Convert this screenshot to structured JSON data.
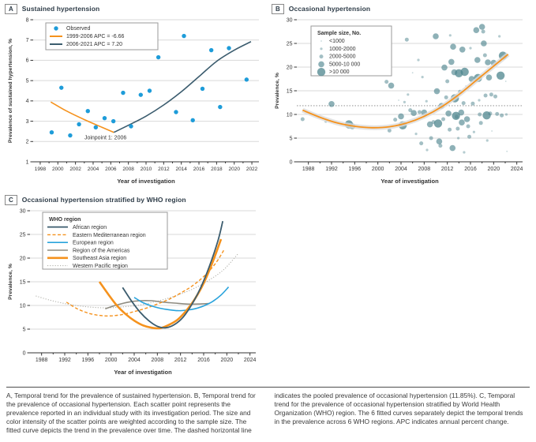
{
  "colors": {
    "observed_blue": "#1e9cd9",
    "trend_orange": "#f5921d",
    "trend_slate": "#3b5c6e",
    "bubble_teal": "#4e858e",
    "europe_blue": "#29a3dc",
    "americas_gray": "#8e8b80",
    "western_pacific_gray": "#b2b2ac",
    "grid": "#d9d9d9",
    "axis": "#333333",
    "pooled_line": "#808080",
    "ci_band": "#dcdcdc",
    "legend_border": "#9a9a9a",
    "header_text": "#2e3c48"
  },
  "panels": {
    "a": {
      "label": "A",
      "title": "Sustained hypertension"
    },
    "b": {
      "label": "B",
      "title": "Occasional hypertension"
    },
    "c": {
      "label": "C",
      "title": "Occasional hypertension stratified by WHO region"
    }
  },
  "caption": "A, Temporal trend for the prevalence of sustained hypertension. B, Temporal trend for the prevalence of occasional hypertension. Each scatter point represents the prevalence reported in an individual study with its investigation period. The size and color intensity of the scatter points are weighted according to the sample size. The fitted curve depicts the trend in the prevalence over time. The dashed horizontal line indicates the pooled prevalence of occasional hypertension (11.85%). C, Temporal trend for the prevalence of occasional hypertension stratified by World Health Organization (WHO) region. The 6 fitted curves separately depict the temporal trends in the prevalence across 6 WHO regions. APC indicates annual percent change.",
  "chart_data": [
    {
      "panel": "A",
      "type": "scatter",
      "title": "Sustained hypertension",
      "xlabel": "Year of investigation",
      "ylabel": "Prevalence of sustained hypertension, %",
      "xlim": [
        1997.2,
        2022.8
      ],
      "ylim": [
        1,
        8
      ],
      "xticks": [
        1998,
        2000,
        2002,
        2004,
        2006,
        2008,
        2010,
        2012,
        2014,
        2016,
        2018,
        2020,
        2022
      ],
      "yticks": [
        1,
        2,
        3,
        4,
        5,
        6,
        7,
        8
      ],
      "legend": [
        {
          "label": "Observed",
          "marker": "point",
          "color": "#1e9cd9"
        },
        {
          "label": "1999-2006 APC = -6.66",
          "marker": "line",
          "color": "#f5921d"
        },
        {
          "label": "2006-2021 APC = 7.20",
          "marker": "line",
          "color": "#3b5c6e"
        }
      ],
      "annotation": "Joinpoint 1: 2006",
      "annotation_xy": [
        2005.4,
        2.1
      ],
      "observed": [
        [
          1999.3,
          2.45
        ],
        [
          2000.4,
          4.65
        ],
        [
          2001.4,
          2.3
        ],
        [
          2002.4,
          2.85
        ],
        [
          2003.4,
          3.5
        ],
        [
          2004.3,
          2.7
        ],
        [
          2005.3,
          3.15
        ],
        [
          2006.3,
          3.0
        ],
        [
          2007.4,
          4.4
        ],
        [
          2008.3,
          2.75
        ],
        [
          2009.4,
          4.3
        ],
        [
          2010.4,
          4.5
        ],
        [
          2011.4,
          6.15
        ],
        [
          2013.4,
          3.45
        ],
        [
          2014.3,
          7.2
        ],
        [
          2015.3,
          3.05
        ],
        [
          2016.4,
          4.6
        ],
        [
          2017.4,
          6.5
        ],
        [
          2018.4,
          3.7
        ],
        [
          2019.4,
          6.6
        ],
        [
          2021.4,
          5.05
        ]
      ],
      "segments": [
        {
          "name": "1999-2006",
          "color": "#f5921d",
          "points": [
            [
              1999.2,
              3.95
            ],
            [
              2001,
              3.5
            ],
            [
              2003,
              3.08
            ],
            [
              2005,
              2.7
            ],
            [
              2006.35,
              2.45
            ]
          ]
        },
        {
          "name": "2006-2021",
          "color": "#3b5c6e",
          "points": [
            [
              2006.35,
              2.45
            ],
            [
              2008,
              2.8
            ],
            [
              2010,
              3.25
            ],
            [
              2012,
              3.8
            ],
            [
              2014,
              4.45
            ],
            [
              2016,
              5.2
            ],
            [
              2018,
              5.95
            ],
            [
              2020,
              6.5
            ],
            [
              2021.9,
              6.92
            ]
          ]
        }
      ]
    },
    {
      "panel": "B",
      "type": "bubble",
      "title": "Occasional hypertension",
      "xlabel": "Year of investigation",
      "ylabel": "Prevalence, %",
      "xlim": [
        1986,
        2025
      ],
      "ylim": [
        0,
        30
      ],
      "xticks": [
        1988,
        1992,
        1996,
        2000,
        2004,
        2008,
        2012,
        2016,
        2020,
        2024
      ],
      "yticks": [
        0,
        5,
        10,
        15,
        20,
        25,
        30
      ],
      "legend_title": "Sample size, No.",
      "size_classes": [
        "<1000",
        "1000-2000",
        "2000-5000",
        "5000-10 000",
        ">10 000"
      ],
      "pooled_prevalence_pct": 11.85,
      "fit": [
        [
          1987,
          10.9
        ],
        [
          1990,
          9.4
        ],
        [
          1993,
          8.2
        ],
        [
          1996,
          7.5
        ],
        [
          1999,
          7.2
        ],
        [
          2002,
          7.4
        ],
        [
          2005,
          8.2
        ],
        [
          2008,
          9.6
        ],
        [
          2011,
          11.6
        ],
        [
          2014,
          14.2
        ],
        [
          2017,
          17.2
        ],
        [
          2020,
          20.2
        ],
        [
          2022.5,
          22.7
        ]
      ],
      "points": [
        [
          1987,
          9.0,
          2
        ],
        [
          1991,
          8.5,
          1
        ],
        [
          1992,
          12.2,
          3
        ],
        [
          1995,
          7.9,
          4
        ],
        [
          1995.6,
          7.5,
          3
        ],
        [
          2001.5,
          16.9,
          2
        ],
        [
          2002.3,
          16.1,
          3
        ],
        [
          2002,
          6.6,
          2
        ],
        [
          2003,
          8.9,
          2
        ],
        [
          2003.6,
          13.0,
          0
        ],
        [
          2004,
          9.6,
          3
        ],
        [
          2004.3,
          7.7,
          4
        ],
        [
          2004.6,
          12.6,
          1
        ],
        [
          2005,
          25.8,
          2
        ],
        [
          2005.2,
          14.2,
          1
        ],
        [
          2005.6,
          10.9,
          2
        ],
        [
          2006,
          18.8,
          0
        ],
        [
          2006.2,
          10.3,
          3
        ],
        [
          2006.6,
          5.9,
          1
        ],
        [
          2007,
          21.5,
          1
        ],
        [
          2007.2,
          10.5,
          2
        ],
        [
          2007.5,
          3.9,
          2
        ],
        [
          2007.7,
          17.9,
          1
        ],
        [
          2008,
          10.4,
          3
        ],
        [
          2008.4,
          12.8,
          1
        ],
        [
          2008.5,
          2.5,
          1
        ],
        [
          2009,
          7.9,
          3
        ],
        [
          2009.2,
          5.0,
          2
        ],
        [
          2009.6,
          8.4,
          2
        ],
        [
          2010,
          26.5,
          3
        ],
        [
          2010.2,
          14.9,
          3
        ],
        [
          2010.4,
          8.1,
          4
        ],
        [
          2010.6,
          4.3,
          3
        ],
        [
          2010.8,
          3.4,
          2
        ],
        [
          2011,
          11.8,
          3
        ],
        [
          2011.3,
          9.0,
          2
        ],
        [
          2011.5,
          19.9,
          3
        ],
        [
          2011.8,
          13.6,
          2
        ],
        [
          2012,
          17.0,
          2
        ],
        [
          2012.2,
          10.2,
          3
        ],
        [
          2012.4,
          6.8,
          2
        ],
        [
          2012.5,
          26.7,
          1
        ],
        [
          2012.7,
          21.1,
          3
        ],
        [
          2012.9,
          2.9,
          3
        ],
        [
          2013,
          24.3,
          3
        ],
        [
          2013.2,
          18.9,
          3
        ],
        [
          2013.3,
          13.4,
          4
        ],
        [
          2013.5,
          9.7,
          4
        ],
        [
          2013.6,
          9.5,
          2
        ],
        [
          2013.8,
          7.0,
          2
        ],
        [
          2013.9,
          5.0,
          1
        ],
        [
          2014,
          18.7,
          4
        ],
        [
          2014.2,
          14.8,
          2
        ],
        [
          2014.4,
          10.4,
          3
        ],
        [
          2014.5,
          8.3,
          3
        ],
        [
          2014.6,
          23.7,
          3
        ],
        [
          2014.8,
          12.4,
          2
        ],
        [
          2014.9,
          2.0,
          1
        ],
        [
          2015,
          19.0,
          4
        ],
        [
          2015.2,
          16.0,
          0
        ],
        [
          2015.4,
          9.0,
          3
        ],
        [
          2015.6,
          7.5,
          2
        ],
        [
          2015.8,
          5.3,
          2
        ],
        [
          2016,
          24.0,
          1
        ],
        [
          2016.2,
          17.5,
          3
        ],
        [
          2016.4,
          12.3,
          2
        ],
        [
          2016.6,
          6.3,
          1
        ],
        [
          2017,
          27.8,
          3
        ],
        [
          2017.2,
          21.5,
          3
        ],
        [
          2017.3,
          17.7,
          4
        ],
        [
          2017.5,
          13.0,
          1
        ],
        [
          2017.6,
          10.0,
          2
        ],
        [
          2017.8,
          8.2,
          2
        ],
        [
          2018,
          28.5,
          3
        ],
        [
          2018.2,
          27.5,
          2
        ],
        [
          2018.3,
          25.0,
          3
        ],
        [
          2018.5,
          22.5,
          2
        ],
        [
          2018.6,
          14.0,
          2
        ],
        [
          2018.8,
          9.8,
          4
        ],
        [
          2018.9,
          4.5,
          1
        ],
        [
          2019,
          21.0,
          3
        ],
        [
          2019.2,
          17.8,
          3
        ],
        [
          2019.4,
          10.2,
          2
        ],
        [
          2019.6,
          14.2,
          2
        ],
        [
          2019.7,
          6.5,
          0
        ],
        [
          2020,
          20.9,
          3
        ],
        [
          2020.3,
          13.8,
          2
        ],
        [
          2020.6,
          10.1,
          2
        ],
        [
          2021,
          26.5,
          1
        ],
        [
          2021.2,
          18.2,
          4
        ],
        [
          2021.4,
          9.8,
          2
        ],
        [
          2021.6,
          22.4,
          4
        ],
        [
          2022,
          22.3,
          2
        ],
        [
          2022.1,
          17.0,
          0
        ],
        [
          2022.2,
          10.0,
          1
        ],
        [
          2022.3,
          2.2,
          0
        ]
      ]
    },
    {
      "panel": "C",
      "type": "line",
      "title": "Occasional hypertension stratified by WHO region",
      "xlabel": "Year of investigation",
      "ylabel": "Prevalence, %",
      "xlim": [
        1986,
        2025
      ],
      "ylim": [
        0,
        30
      ],
      "xticks": [
        1988,
        1992,
        1996,
        2000,
        2004,
        2008,
        2012,
        2016,
        2020,
        2024
      ],
      "yticks": [
        0,
        5,
        10,
        15,
        20,
        25,
        30
      ],
      "legend_title": "WHO region",
      "series": [
        {
          "name": "African region",
          "color": "#3b5c6e",
          "dash": "",
          "width": 1.8,
          "points": [
            [
              2002,
              13.8
            ],
            [
              2003.5,
              11.0
            ],
            [
              2005,
              8.6
            ],
            [
              2006.5,
              6.8
            ],
            [
              2008,
              5.6
            ],
            [
              2009.5,
              5.3
            ],
            [
              2011,
              6.0
            ],
            [
              2012.5,
              7.6
            ],
            [
              2014,
              10.3
            ],
            [
              2015.5,
              13.8
            ],
            [
              2017,
              18.3
            ],
            [
              2018.5,
              23.8
            ],
            [
              2019.3,
              27.8
            ]
          ]
        },
        {
          "name": "Eastern Mediterranean region",
          "color": "#f5921d",
          "dash": "4,2.5",
          "width": 1.4,
          "points": [
            [
              1992.3,
              10.7
            ],
            [
              1994,
              9.4
            ],
            [
              1996,
              8.4
            ],
            [
              1998,
              7.9
            ],
            [
              2000,
              7.8
            ],
            [
              2002,
              8.1
            ],
            [
              2004,
              8.7
            ],
            [
              2006,
              9.4
            ],
            [
              2008,
              10.3
            ],
            [
              2010,
              11.3
            ],
            [
              2012,
              12.6
            ],
            [
              2014,
              14.1
            ],
            [
              2016,
              16.1
            ],
            [
              2018,
              18.8
            ],
            [
              2019.5,
              21.7
            ]
          ]
        },
        {
          "name": "European region",
          "color": "#29a3dc",
          "dash": "",
          "width": 1.6,
          "points": [
            [
              2004,
              11.7
            ],
            [
              2005.5,
              10.6
            ],
            [
              2007,
              9.9
            ],
            [
              2008.5,
              9.4
            ],
            [
              2010,
              9.1
            ],
            [
              2011.5,
              8.9
            ],
            [
              2013,
              9.0
            ],
            [
              2014.5,
              9.3
            ],
            [
              2016,
              9.9
            ],
            [
              2017.5,
              10.8
            ],
            [
              2019,
              12.2
            ],
            [
              2020.3,
              13.9
            ]
          ]
        },
        {
          "name": "Region of the Americas",
          "color": "#8e8b80",
          "dash": "",
          "width": 1.6,
          "points": [
            [
              1999,
              9.3
            ],
            [
              2001,
              10.1
            ],
            [
              2003,
              10.7
            ],
            [
              2005,
              11.0
            ],
            [
              2007,
              11.0
            ],
            [
              2009,
              10.7
            ],
            [
              2011,
              10.5
            ],
            [
              2013,
              10.3
            ],
            [
              2015,
              10.3
            ],
            [
              2017,
              10.4
            ]
          ]
        },
        {
          "name": "Southeast Asia region",
          "color": "#f5921d",
          "dash": "",
          "width": 2.6,
          "points": [
            [
              1998,
              15.0
            ],
            [
              1999.5,
              12.4
            ],
            [
              2001,
              10.0
            ],
            [
              2002.5,
              8.2
            ],
            [
              2004,
              6.8
            ],
            [
              2005.5,
              5.8
            ],
            [
              2007,
              5.3
            ],
            [
              2008.5,
              5.2
            ],
            [
              2010,
              5.9
            ],
            [
              2011.5,
              7.0
            ],
            [
              2013,
              8.9
            ],
            [
              2014.5,
              11.4
            ],
            [
              2016,
              14.7
            ],
            [
              2017.5,
              19.0
            ],
            [
              2019,
              24.0
            ]
          ]
        },
        {
          "name": "Western Pacific region",
          "color": "#b2b2ac",
          "dash": "1.2,2",
          "width": 1.1,
          "points": [
            [
              1987,
              12.0
            ],
            [
              1989.5,
              11.1
            ],
            [
              1992,
              10.4
            ],
            [
              1994.5,
              9.9
            ],
            [
              1997,
              9.6
            ],
            [
              1999.5,
              9.5
            ],
            [
              2002,
              9.7
            ],
            [
              2004.5,
              10.0
            ],
            [
              2007,
              10.6
            ],
            [
              2009.5,
              11.4
            ],
            [
              2012,
              12.4
            ],
            [
              2014.5,
              13.7
            ],
            [
              2017,
              15.4
            ],
            [
              2019.5,
              17.6
            ],
            [
              2022,
              21.0
            ]
          ]
        }
      ]
    }
  ]
}
